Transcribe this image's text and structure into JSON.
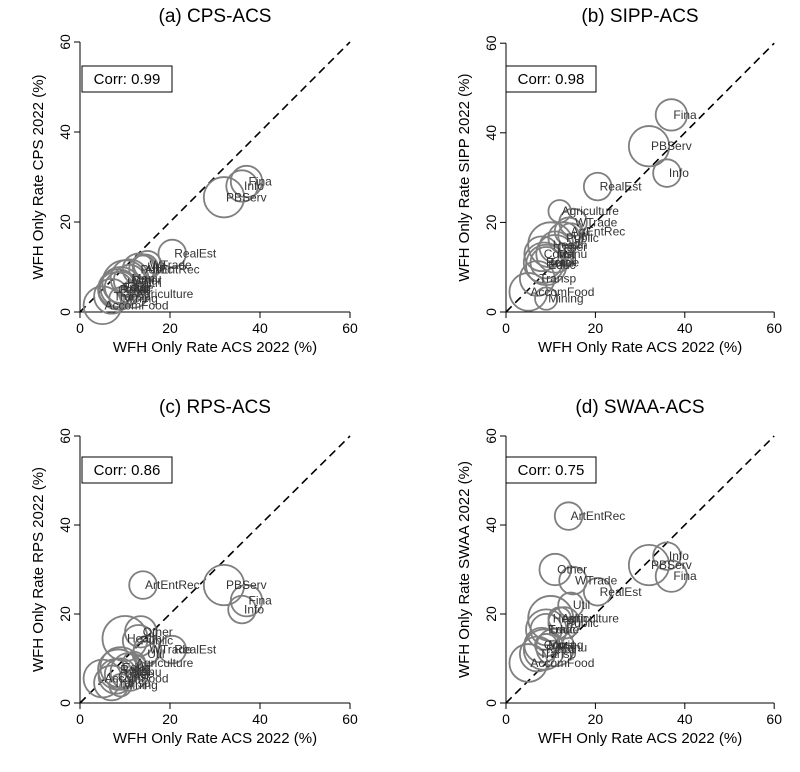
{
  "chart_data": [
    {
      "type": "scatter",
      "title": "(a) CPS-ACS",
      "xlabel": "WFH Only Rate ACS 2022 (%)",
      "ylabel": "WFH Only Rate CPS 2022 (%)",
      "xlim": [
        0,
        60
      ],
      "ylim": [
        0,
        60
      ],
      "xticks": [
        "0",
        "20",
        "40",
        "60"
      ],
      "yticks": [
        "0",
        "20",
        "40",
        "60"
      ],
      "corr_label": "Corr: 0.99",
      "reference_line": "45-degree dashed",
      "points": [
        {
          "label": "Fina",
          "x": 37,
          "y": 29,
          "size": 3
        },
        {
          "label": "Info",
          "x": 36,
          "y": 28,
          "size": 3
        },
        {
          "label": "PBServ",
          "x": 32,
          "y": 25.5,
          "size": 6
        },
        {
          "label": "RealEst",
          "x": 20.5,
          "y": 13,
          "size": 2
        },
        {
          "label": "WTrade",
          "x": 15,
          "y": 10.5,
          "size": 2
        },
        {
          "label": "ArtEntRec",
          "x": 14,
          "y": 9.5,
          "size": 2
        },
        {
          "label": "Util",
          "x": 14.5,
          "y": 10,
          "size": 1.5
        },
        {
          "label": "Public",
          "x": 13,
          "y": 9.5,
          "size": 3
        },
        {
          "label": "Manu",
          "x": 11,
          "y": 7.5,
          "size": 5
        },
        {
          "label": "Health",
          "x": 10,
          "y": 6.5,
          "size": 8
        },
        {
          "label": "Other",
          "x": 11,
          "y": 7,
          "size": 3
        },
        {
          "label": "Educ",
          "x": 9,
          "y": 5.5,
          "size": 6
        },
        {
          "label": "Const",
          "x": 8,
          "y": 5,
          "size": 4
        },
        {
          "label": "Retail",
          "x": 8.5,
          "y": 5,
          "size": 6
        },
        {
          "label": "Trade",
          "x": 9,
          "y": 5.5,
          "size": 3
        },
        {
          "label": "Agriculture",
          "x": 12,
          "y": 4,
          "size": 2
        },
        {
          "label": "Transp",
          "x": 7,
          "y": 3.5,
          "size": 4
        },
        {
          "label": "Mining",
          "x": 9,
          "y": 3,
          "size": 1
        },
        {
          "label": "AccomFood",
          "x": 5,
          "y": 1.5,
          "size": 5
        }
      ]
    },
    {
      "type": "scatter",
      "title": "(b) SIPP-ACS",
      "xlabel": "WFH Only Rate ACS 2022 (%)",
      "ylabel": "WFH Only Rate SIPP 2022 (%)",
      "xlim": [
        0,
        60
      ],
      "ylim": [
        0,
        60
      ],
      "xticks": [
        "0",
        "20",
        "40",
        "60"
      ],
      "yticks": [
        "0",
        "20",
        "40",
        "60"
      ],
      "corr_label": "Corr: 0.98",
      "reference_line": "45-degree dashed",
      "points": [
        {
          "label": "Fina",
          "x": 37,
          "y": 44,
          "size": 3
        },
        {
          "label": "PBServ",
          "x": 32,
          "y": 37,
          "size": 6
        },
        {
          "label": "Info",
          "x": 36,
          "y": 31,
          "size": 2
        },
        {
          "label": "RealEst",
          "x": 20.5,
          "y": 28,
          "size": 2
        },
        {
          "label": "Agriculture",
          "x": 12,
          "y": 22.5,
          "size": 1
        },
        {
          "label": "WTrade",
          "x": 15,
          "y": 20,
          "size": 2
        },
        {
          "label": "ArtEntRec",
          "x": 14,
          "y": 18,
          "size": 2
        },
        {
          "label": "Public",
          "x": 13,
          "y": 16.5,
          "size": 3
        },
        {
          "label": "Util",
          "x": 14.5,
          "y": 17,
          "size": 1.5
        },
        {
          "label": "Health",
          "x": 10,
          "y": 15,
          "size": 8
        },
        {
          "label": "Other",
          "x": 11,
          "y": 14.5,
          "size": 3
        },
        {
          "label": "Const",
          "x": 8,
          "y": 13,
          "size": 4
        },
        {
          "label": "Manu",
          "x": 11,
          "y": 13,
          "size": 5
        },
        {
          "label": "Retail",
          "x": 8.5,
          "y": 11,
          "size": 6
        },
        {
          "label": "Trade",
          "x": 9,
          "y": 11,
          "size": 3
        },
        {
          "label": "Educ",
          "x": 9,
          "y": 10.5,
          "size": 6
        },
        {
          "label": "Transp",
          "x": 7,
          "y": 7.5,
          "size": 4
        },
        {
          "label": "AccomFood",
          "x": 5,
          "y": 4.5,
          "size": 5
        },
        {
          "label": "Mining",
          "x": 9,
          "y": 3,
          "size": 1
        }
      ]
    },
    {
      "type": "scatter",
      "title": "(c) RPS-ACS",
      "xlabel": "WFH Only Rate ACS 2022 (%)",
      "ylabel": "WFH Only Rate RPS 2022 (%)",
      "xlim": [
        0,
        60
      ],
      "ylim": [
        0,
        60
      ],
      "xticks": [
        "0",
        "20",
        "40",
        "60"
      ],
      "yticks": [
        "0",
        "20",
        "40",
        "60"
      ],
      "corr_label": "Corr: 0.86",
      "reference_line": "45-degree dashed",
      "points": [
        {
          "label": "PBServ",
          "x": 32,
          "y": 26.5,
          "size": 6
        },
        {
          "label": "ArtEntRec",
          "x": 14,
          "y": 26.5,
          "size": 2
        },
        {
          "label": "Fina",
          "x": 37,
          "y": 23,
          "size": 3
        },
        {
          "label": "Info",
          "x": 36,
          "y": 21,
          "size": 2
        },
        {
          "label": "Other",
          "x": 13.5,
          "y": 16,
          "size": 3
        },
        {
          "label": "Public",
          "x": 13,
          "y": 14,
          "size": 3
        },
        {
          "label": "Health",
          "x": 10,
          "y": 14.5,
          "size": 8
        },
        {
          "label": "RealEst",
          "x": 20.5,
          "y": 12,
          "size": 2
        },
        {
          "label": "WTrade",
          "x": 15,
          "y": 12,
          "size": 2
        },
        {
          "label": "Util",
          "x": 14.5,
          "y": 11,
          "size": 1.5
        },
        {
          "label": "Agriculture",
          "x": 12,
          "y": 9,
          "size": 1
        },
        {
          "label": "Educ",
          "x": 9,
          "y": 8,
          "size": 6
        },
        {
          "label": "Retail",
          "x": 8.5,
          "y": 7.5,
          "size": 6
        },
        {
          "label": "Manu",
          "x": 11,
          "y": 7,
          "size": 5
        },
        {
          "label": "Trade",
          "x": 9,
          "y": 6.5,
          "size": 3
        },
        {
          "label": "Const",
          "x": 8,
          "y": 6,
          "size": 4
        },
        {
          "label": "AccomFood",
          "x": 5,
          "y": 5.5,
          "size": 5
        },
        {
          "label": "Transp",
          "x": 7,
          "y": 4.5,
          "size": 4
        },
        {
          "label": "Mining",
          "x": 9,
          "y": 4,
          "size": 1
        }
      ]
    },
    {
      "type": "scatter",
      "title": "(d) SWAA-ACS",
      "xlabel": "WFH Only Rate ACS 2022 (%)",
      "ylabel": "WFH Only Rate SWAA 2022 (%)",
      "xlim": [
        0,
        60
      ],
      "ylim": [
        0,
        60
      ],
      "xticks": [
        "0",
        "20",
        "40",
        "60"
      ],
      "yticks": [
        "0",
        "20",
        "40",
        "60"
      ],
      "corr_label": "Corr: 0.75",
      "reference_line": "45-degree dashed",
      "points": [
        {
          "label": "ArtEntRec",
          "x": 14,
          "y": 42,
          "size": 2
        },
        {
          "label": "Info",
          "x": 36,
          "y": 33,
          "size": 2
        },
        {
          "label": "PBServ",
          "x": 32,
          "y": 31,
          "size": 6
        },
        {
          "label": "Fina",
          "x": 37,
          "y": 28.5,
          "size": 3
        },
        {
          "label": "Other",
          "x": 11,
          "y": 30,
          "size": 3
        },
        {
          "label": "WTrade",
          "x": 15,
          "y": 27.5,
          "size": 2
        },
        {
          "label": "RealEst",
          "x": 20.5,
          "y": 25,
          "size": 2
        },
        {
          "label": "Util",
          "x": 14.5,
          "y": 22,
          "size": 1.5
        },
        {
          "label": "Health",
          "x": 10,
          "y": 19,
          "size": 8
        },
        {
          "label": "Agriculture",
          "x": 12,
          "y": 19,
          "size": 1
        },
        {
          "label": "Public",
          "x": 13,
          "y": 18,
          "size": 3
        },
        {
          "label": "Educ",
          "x": 9,
          "y": 16.5,
          "size": 6
        },
        {
          "label": "Trade",
          "x": 9,
          "y": 16.5,
          "size": 3
        },
        {
          "label": "Const",
          "x": 8,
          "y": 13,
          "size": 4
        },
        {
          "label": "Manu",
          "x": 11,
          "y": 12.5,
          "size": 5
        },
        {
          "label": "Mining",
          "x": 9,
          "y": 13,
          "size": 1
        },
        {
          "label": "Retail",
          "x": 8.5,
          "y": 12,
          "size": 6
        },
        {
          "label": "Transp",
          "x": 7,
          "y": 11,
          "size": 4
        },
        {
          "label": "AccomFood",
          "x": 5,
          "y": 9,
          "size": 5
        }
      ]
    }
  ]
}
